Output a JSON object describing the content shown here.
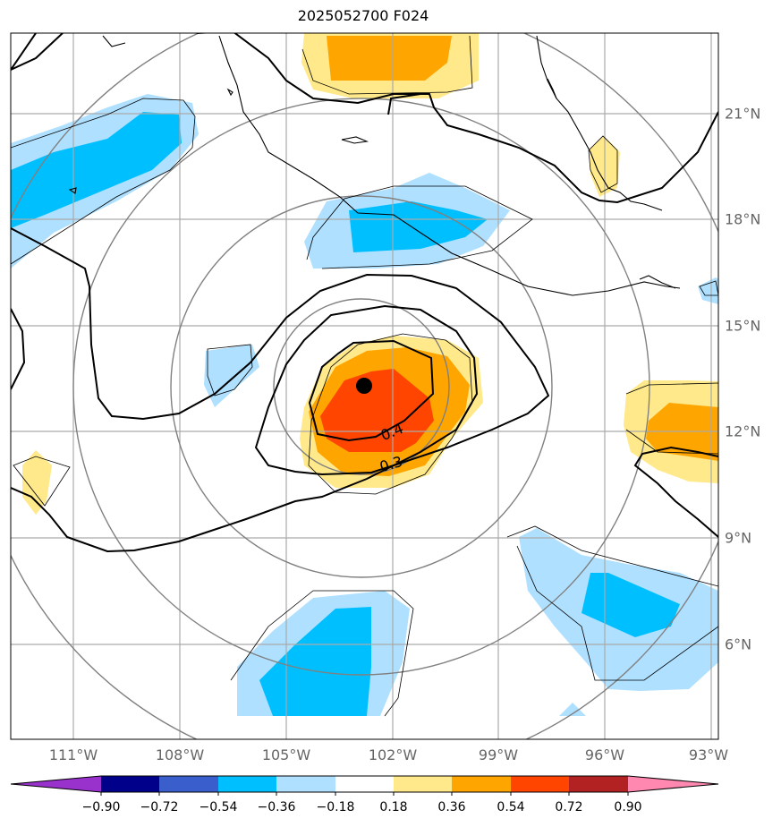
{
  "title": "2025052700 F024",
  "map": {
    "lon_range": [
      -113.3,
      -93.2
    ],
    "lat_range": [
      3.3,
      23.3
    ],
    "longitude_ticks": [
      "111°W",
      "108°W",
      "105°W",
      "102°W",
      "99°W",
      "96°W",
      "93°W"
    ],
    "latitude_ticks": [
      "21°N",
      "18°N",
      "15°N",
      "12°N",
      "9°N",
      "6°N"
    ],
    "center_marker": {
      "lon": -102.9,
      "lat": 13.2
    },
    "contour_labels": [
      "0.4",
      "0.3"
    ],
    "range_rings": "grey concentric circles around center",
    "gridlines": true
  },
  "colorbar": {
    "tick_labels": [
      "−0.90",
      "−0.72",
      "−0.54",
      "−0.36",
      "−0.18",
      "0.18",
      "0.36",
      "0.54",
      "0.72",
      "0.90"
    ],
    "colors": [
      "#9932cc",
      "#00008b",
      "#3a5fcd",
      "#00bfff",
      "#b0e0ff",
      "#ffffff",
      "#ffe98a",
      "#ffa500",
      "#ff4500",
      "#b22222",
      "#ff88b0"
    ]
  }
}
